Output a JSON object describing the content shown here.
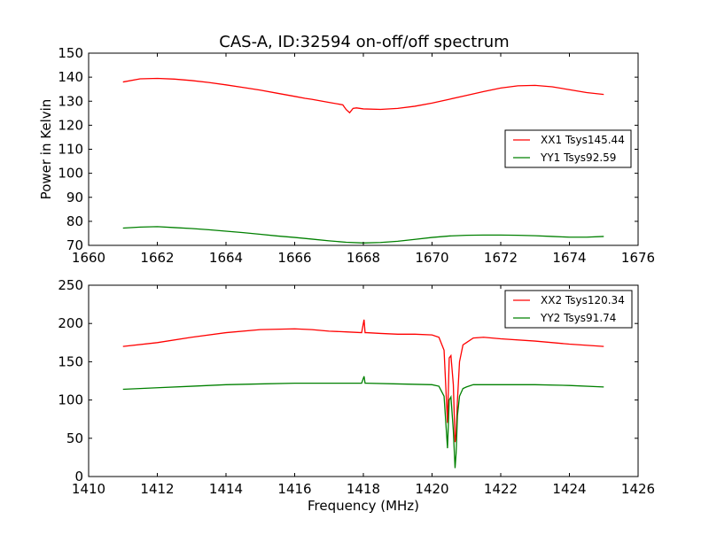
{
  "figure": {
    "title": "CAS-A, ID:32594 on-off/off spectrum"
  },
  "chart_data": [
    {
      "type": "line",
      "title": "CAS-A, ID:32594 on-off/off spectrum",
      "xlabel": "",
      "ylabel": "Power in Kelvin",
      "xlim": [
        1660,
        1676
      ],
      "ylim": [
        70,
        150
      ],
      "xticks": [
        "1660",
        "1662",
        "1664",
        "1666",
        "1668",
        "1670",
        "1672",
        "1674",
        "1676"
      ],
      "yticks": [
        "70",
        "80",
        "90",
        "100",
        "110",
        "120",
        "130",
        "140",
        "150"
      ],
      "legend_position": "center-right",
      "grid": false,
      "series": [
        {
          "name": "XX1 Tsys145.44",
          "color": "#ff0000",
          "x": [
            1661.0,
            1661.5,
            1662.0,
            1662.5,
            1663.0,
            1663.5,
            1664.0,
            1664.5,
            1665.0,
            1665.5,
            1666.0,
            1666.3,
            1666.5,
            1667.0,
            1667.4,
            1667.5,
            1667.6,
            1667.7,
            1667.8,
            1668.0,
            1668.5,
            1669.0,
            1669.5,
            1670.0,
            1670.5,
            1671.0,
            1671.5,
            1672.0,
            1672.5,
            1673.0,
            1673.5,
            1674.0,
            1674.5,
            1675.0
          ],
          "y": [
            138.0,
            139.3,
            139.5,
            139.2,
            138.6,
            137.8,
            136.8,
            135.7,
            134.6,
            133.3,
            132.0,
            131.2,
            130.8,
            129.5,
            128.5,
            126.5,
            125.2,
            127.0,
            127.2,
            126.8,
            126.6,
            127.0,
            127.9,
            129.2,
            130.8,
            132.4,
            134.0,
            135.5,
            136.4,
            136.6,
            136.0,
            134.8,
            133.6,
            132.8
          ]
        },
        {
          "name": "YY1 Tsys92.59",
          "color": "#008000",
          "x": [
            1661.0,
            1661.5,
            1662.0,
            1662.5,
            1663.0,
            1663.5,
            1664.0,
            1664.5,
            1665.0,
            1665.5,
            1666.0,
            1666.5,
            1667.0,
            1667.5,
            1668.0,
            1668.5,
            1669.0,
            1669.5,
            1670.0,
            1670.5,
            1671.0,
            1671.5,
            1672.0,
            1672.5,
            1673.0,
            1673.5,
            1674.0,
            1674.5,
            1675.0
          ],
          "y": [
            77.2,
            77.6,
            77.8,
            77.4,
            77.0,
            76.5,
            75.9,
            75.3,
            74.6,
            73.9,
            73.3,
            72.6,
            71.9,
            71.3,
            71.0,
            71.2,
            71.7,
            72.5,
            73.3,
            73.9,
            74.2,
            74.3,
            74.3,
            74.2,
            74.0,
            73.7,
            73.4,
            73.4,
            73.7
          ]
        }
      ]
    },
    {
      "type": "line",
      "title": "",
      "xlabel": "Frequency (MHz)",
      "ylabel": "",
      "xlim": [
        1410,
        1426
      ],
      "ylim": [
        0,
        250
      ],
      "xticks": [
        "1410",
        "1412",
        "1414",
        "1416",
        "1418",
        "1420",
        "1422",
        "1424",
        "1426"
      ],
      "yticks": [
        "0",
        "50",
        "100",
        "150",
        "200",
        "250"
      ],
      "legend_position": "top-right",
      "grid": false,
      "series": [
        {
          "name": "XX2 Tsys120.34",
          "color": "#ff0000",
          "x": [
            1411.0,
            1412.0,
            1413.0,
            1414.0,
            1415.0,
            1416.0,
            1416.5,
            1417.0,
            1417.5,
            1417.95,
            1418.02,
            1418.05,
            1418.1,
            1418.5,
            1419.0,
            1419.5,
            1420.0,
            1420.2,
            1420.35,
            1420.45,
            1420.5,
            1420.55,
            1420.62,
            1420.67,
            1420.7,
            1420.74,
            1420.8,
            1420.9,
            1421.0,
            1421.2,
            1421.5,
            1422.0,
            1423.0,
            1424.0,
            1425.0
          ],
          "y": [
            170,
            175,
            182,
            188,
            192,
            193,
            192,
            190,
            189,
            188,
            205,
            188,
            188,
            187,
            186,
            186,
            185,
            182,
            165,
            70,
            155,
            158,
            120,
            45,
            55,
            100,
            150,
            172,
            175,
            181,
            182,
            180,
            177,
            173,
            170
          ]
        },
        {
          "name": "YY2 Tsys91.74",
          "color": "#008000",
          "x": [
            1411.0,
            1412.0,
            1413.0,
            1414.0,
            1415.0,
            1416.0,
            1417.0,
            1417.95,
            1418.02,
            1418.05,
            1418.1,
            1419.0,
            1420.0,
            1420.2,
            1420.35,
            1420.45,
            1420.5,
            1420.55,
            1420.62,
            1420.67,
            1420.7,
            1420.74,
            1420.8,
            1420.9,
            1421.0,
            1421.2,
            1421.5,
            1422.0,
            1423.0,
            1424.0,
            1425.0
          ],
          "y": [
            114,
            116,
            118,
            120,
            121,
            122,
            122,
            122,
            131,
            122,
            122,
            121,
            120,
            118,
            105,
            37,
            100,
            104,
            60,
            11,
            30,
            80,
            105,
            115,
            117,
            120,
            120,
            120,
            120,
            119,
            117
          ]
        }
      ]
    }
  ]
}
